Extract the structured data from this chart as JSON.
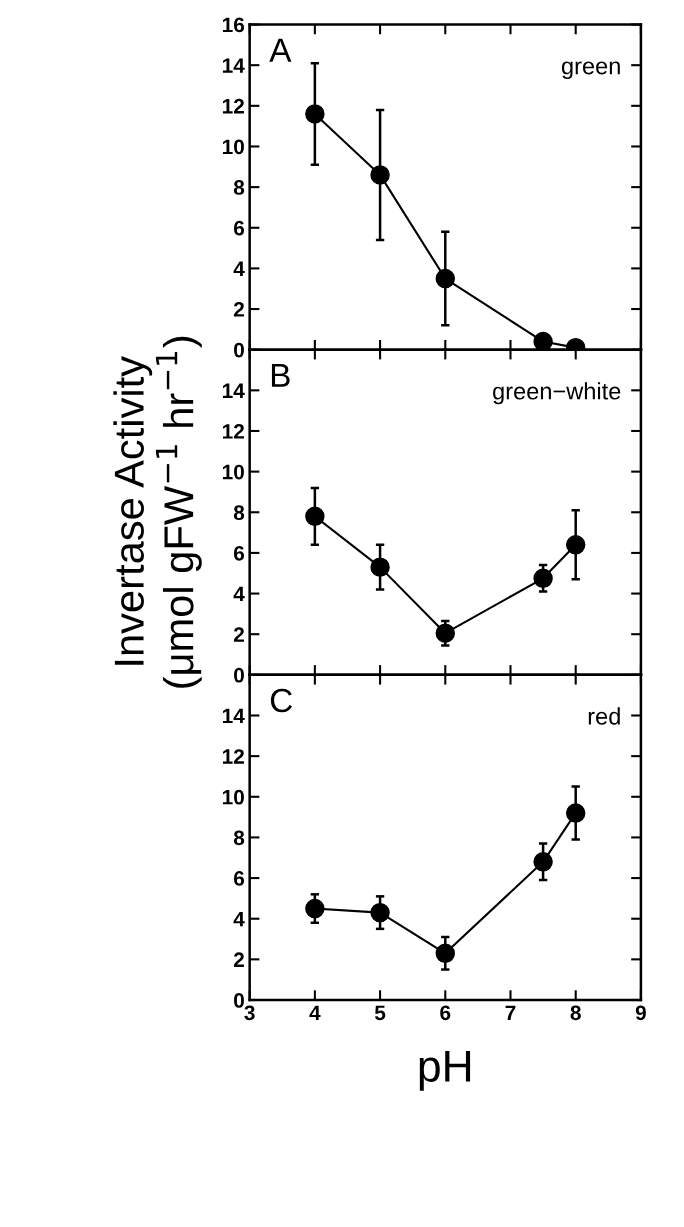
{
  "chart_data": [
    {
      "type": "line",
      "x": [
        4,
        5,
        6,
        7.5,
        8
      ],
      "annotations": [
        "A",
        "green"
      ],
      "marker": "circle",
      "line_style": "solid",
      "grid": false,
      "legend": false,
      "tick_labels": "y",
      "series": [
        {
          "color": "#000000",
          "values": [
            11.6,
            8.6,
            3.5,
            0.4,
            0.1
          ],
          "errors": [
            2.5,
            3.2,
            2.3,
            null,
            null
          ]
        }
      ],
      "xlim": [
        3,
        9
      ],
      "xticks": [
        3,
        4,
        5,
        6,
        7,
        8,
        9
      ],
      "ylim": [
        0,
        16
      ],
      "yticks": [
        0,
        2,
        4,
        6,
        8,
        10,
        12,
        14,
        16
      ]
    },
    {
      "type": "line",
      "x": [
        4,
        5,
        6,
        7.5,
        8
      ],
      "annotations": [
        "B",
        "green−white"
      ],
      "marker": "circle",
      "line_style": "solid",
      "grid": false,
      "legend": false,
      "tick_labels": "y",
      "ylabel": "Invertase Activity\n(μmol gFW$^{−1}$ hr$^{−1}$)",
      "series": [
        {
          "color": "#000000",
          "values": [
            7.8,
            5.3,
            2.05,
            4.75,
            6.4
          ],
          "errors": [
            1.4,
            1.1,
            0.6,
            0.65,
            1.7
          ]
        }
      ],
      "xlim": [
        3,
        9
      ],
      "xticks": [
        3,
        4,
        5,
        6,
        7,
        8,
        9
      ],
      "ylim": [
        0,
        16
      ],
      "yticks": [
        0,
        2,
        4,
        6,
        8,
        10,
        12,
        14
      ]
    },
    {
      "type": "line",
      "x": [
        4,
        5,
        6,
        7.5,
        8
      ],
      "annotations": [
        "C",
        "red"
      ],
      "marker": "circle",
      "line_style": "solid",
      "grid": false,
      "legend": false,
      "xlabel": "pH",
      "series": [
        {
          "color": "#000000",
          "values": [
            4.5,
            4.3,
            2.3,
            6.8,
            9.2
          ],
          "errors": [
            0.7,
            0.8,
            0.8,
            0.9,
            1.3
          ]
        }
      ],
      "xlim": [
        3,
        9
      ],
      "xticks": [
        3,
        4,
        5,
        6,
        7,
        8,
        9
      ],
      "ylim": [
        0,
        16
      ],
      "yticks": [
        0,
        2,
        4,
        6,
        8,
        10,
        12,
        14
      ]
    }
  ]
}
